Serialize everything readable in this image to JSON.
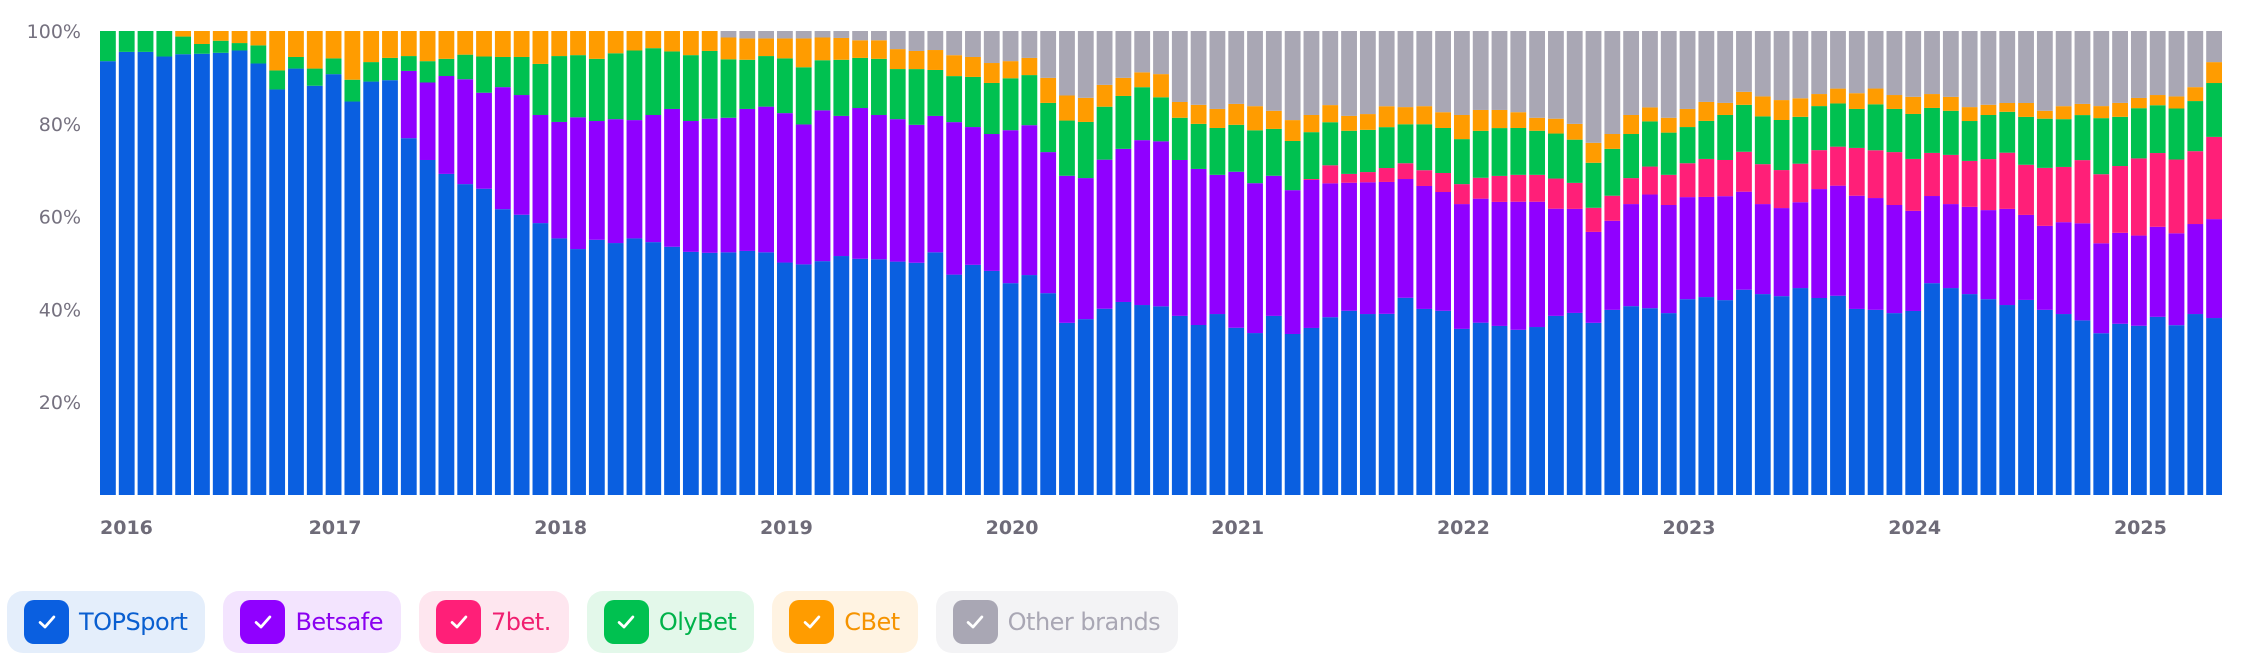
{
  "chart_data": {
    "type": "bar",
    "stacked": true,
    "normalized": true,
    "title": "",
    "xlabel": "",
    "ylabel": "",
    "ylim": [
      0,
      100
    ],
    "y_ticks": [
      "20%",
      "40%",
      "60%",
      "80%",
      "100%"
    ],
    "y_tick_values": [
      20,
      40,
      60,
      80,
      100
    ],
    "x_ticks": [
      "2016",
      "2017",
      "2018",
      "2019",
      "2020",
      "2021",
      "2022",
      "2023",
      "2024",
      "2025"
    ],
    "x_tick_bar_index": [
      0,
      12,
      24,
      36,
      48,
      60,
      72,
      84,
      96,
      108
    ],
    "bar_count": 113,
    "legend_position": "bottom-left",
    "series": [
      {
        "name": "TOPSport",
        "color": "#0a5fe0",
        "values": [
          93.5,
          95.5,
          95.5,
          94.5,
          95,
          95.1,
          95.3,
          95.8,
          93,
          87.4,
          91.9,
          88.2,
          90.7,
          84.8,
          89.1,
          89.4,
          76.9,
          72.2,
          69.2,
          67,
          66,
          61.6,
          60.4,
          58.6,
          55.3,
          53,
          55,
          54.3,
          55.3,
          54.5,
          53.5,
          52.4,
          52.2,
          52.3,
          52.6,
          52.3,
          50.1,
          49.6,
          50.4,
          51.5,
          50.9,
          50.8,
          50.3,
          50,
          52.3,
          47.4,
          49.6,
          48.3,
          45.7,
          47.4,
          43.5,
          37.1,
          37.9,
          40.1,
          41.6,
          40.9,
          40.7,
          38.6,
          36.6,
          39,
          36,
          34.9,
          38.6,
          34.7,
          36,
          38.4,
          39.7,
          39,
          39,
          42.5,
          40.1,
          39.7,
          35.8,
          37.1,
          36.4,
          35.6,
          36.2,
          38.6,
          39.2,
          37.1,
          39.9,
          40.7,
          40.1,
          39.2,
          42.2,
          42.7,
          42,
          44.2,
          43.3,
          42.9,
          44.6,
          42.5,
          42.9,
          40.1,
          39.9,
          39.2,
          39.7,
          45.7,
          44.6,
          43.3,
          42.2,
          40.9,
          42,
          39.9,
          39,
          37.6,
          34.9,
          36.9,
          36.4,
          38.4,
          36.6,
          39,
          38.1
        ]
      },
      {
        "name": "Betsafe",
        "color": "#9000ff",
        "values": [
          0,
          0,
          0,
          0,
          0,
          0,
          0,
          0,
          0,
          0,
          0,
          0,
          0,
          0,
          0,
          0,
          14.5,
          16.7,
          21.1,
          22.6,
          20.7,
          26.3,
          25.8,
          23.3,
          25.1,
          28.4,
          25.6,
          26.7,
          25.5,
          27.4,
          29.7,
          28.2,
          28.9,
          29,
          30.6,
          31.4,
          32.2,
          30.1,
          32.5,
          30.2,
          32.5,
          31.1,
          30.7,
          29.7,
          29.4,
          32.8,
          29.7,
          29.5,
          33,
          32.3,
          30.4,
          31.7,
          30.4,
          32.1,
          33,
          35.5,
          35.6,
          33.6,
          33.6,
          30,
          33.6,
          32.3,
          30.2,
          31,
          31.9,
          28.9,
          27.6,
          28.4,
          28.4,
          25.6,
          26.5,
          25.6,
          26.9,
          26.7,
          26.7,
          27.6,
          27,
          23.1,
          22.4,
          19.6,
          19.2,
          22,
          24.4,
          23.3,
          22,
          21.6,
          22.4,
          21.1,
          19.4,
          19,
          18.5,
          23.5,
          23.7,
          24.4,
          24.1,
          23.3,
          21.6,
          18.8,
          18.1,
          18.8,
          19.2,
          20.7,
          18.3,
          18.1,
          19.8,
          20.9,
          19.4,
          19.6,
          19.4,
          19.4,
          19.8,
          19.4,
          21.3
        ]
      },
      {
        "name": "7bet.",
        "color": "#ff1f78",
        "values": [
          0,
          0,
          0,
          0,
          0,
          0,
          0,
          0,
          0,
          0,
          0,
          0,
          0,
          0,
          0,
          0,
          0,
          0,
          0,
          0,
          0,
          0,
          0,
          0,
          0,
          0,
          0,
          0,
          0,
          0,
          0,
          0,
          0,
          0,
          0,
          0,
          0,
          0,
          0,
          0,
          0,
          0,
          0,
          0,
          0,
          0,
          0,
          0,
          0,
          0,
          0,
          0,
          0,
          0,
          0,
          0,
          0,
          0,
          0,
          0,
          0,
          0,
          0,
          0,
          0.2,
          3.9,
          1.9,
          2.2,
          3,
          3.4,
          3.4,
          4.1,
          4.3,
          4.5,
          5.6,
          5.8,
          5.8,
          6.5,
          5.6,
          5.2,
          5.4,
          5.6,
          6,
          6.5,
          7.3,
          8.2,
          7.8,
          8.6,
          8.6,
          8.2,
          8.3,
          8.4,
          8.4,
          10.3,
          10.3,
          11.4,
          11.2,
          9.3,
          10.6,
          9.9,
          11,
          12.1,
          10.8,
          12.5,
          11.9,
          13.6,
          14.9,
          14.4,
          16.6,
          15.9,
          15.9,
          15.7,
          17.7
        ]
      },
      {
        "name": "OlyBet",
        "color": "#00c150",
        "values": [
          6.5,
          4.5,
          4.5,
          5.5,
          3.8,
          2.1,
          2.6,
          1.6,
          3.9,
          4.1,
          2.5,
          3.7,
          3.4,
          4.7,
          4.2,
          4.8,
          3.2,
          4.6,
          3.7,
          5.3,
          7.8,
          6.5,
          8.2,
          11,
          14.2,
          13.4,
          13.4,
          14.2,
          15,
          14.4,
          12.4,
          14.2,
          14.6,
          12.6,
          10.6,
          10.9,
          11.8,
          12.3,
          10.8,
          12.1,
          10.8,
          12.1,
          10.8,
          12,
          9.9,
          9.9,
          10.8,
          11,
          11.2,
          10.8,
          10.6,
          11.9,
          12.1,
          11.4,
          11.4,
          11.4,
          9.5,
          9.1,
          9.7,
          10.1,
          10.1,
          11.4,
          10.1,
          10.6,
          10.1,
          9.3,
          9.3,
          9.1,
          8.8,
          8.4,
          9.9,
          9.7,
          9.7,
          10.1,
          10.3,
          10.1,
          9.5,
          9.7,
          9.3,
          9.7,
          10.1,
          9.5,
          9.7,
          9.1,
          7.8,
          8.2,
          9.7,
          10.1,
          10.3,
          10.8,
          10.1,
          9.5,
          9.3,
          8.4,
          9.9,
          9.3,
          9.7,
          9.7,
          9.5,
          8.6,
          9.5,
          8.8,
          10.3,
          10.6,
          10.3,
          9.7,
          12.1,
          10.6,
          10.8,
          10.3,
          11,
          10.8,
          11.6
        ]
      },
      {
        "name": "CBet",
        "color": "#ff9c00",
        "values": [
          0,
          0,
          0,
          0,
          1.2,
          2.8,
          2.1,
          2.6,
          3.1,
          8.5,
          5.6,
          8.1,
          5.9,
          10.5,
          6.7,
          5.8,
          5.4,
          6.5,
          6,
          5.1,
          5.5,
          5.6,
          5.6,
          7.1,
          5.4,
          5.2,
          6,
          4.8,
          4.2,
          3.7,
          4.4,
          5.2,
          4.3,
          4.7,
          4.6,
          3.8,
          4.3,
          6.2,
          4.9,
          4.7,
          3.8,
          4,
          4.3,
          3.9,
          4.3,
          4.5,
          4.3,
          4.3,
          3.7,
          3.7,
          5.4,
          5.4,
          5.2,
          4.7,
          3.9,
          3.2,
          5,
          3.4,
          4.1,
          4.1,
          4.5,
          5.2,
          3.9,
          4.5,
          3.7,
          3.7,
          3.2,
          3.4,
          4.5,
          3.7,
          3.9,
          3.4,
          5.2,
          4.5,
          3.9,
          3.4,
          2.8,
          3.2,
          3.4,
          4.3,
          3.2,
          4.1,
          3,
          3.2,
          3.9,
          4.1,
          2.6,
          2.8,
          4.3,
          4.3,
          4,
          2.6,
          3.2,
          3.4,
          3.4,
          3,
          3.7,
          3,
          3,
          3,
          2.2,
          1.9,
          3,
          1.7,
          2.8,
          2.4,
          2.6,
          3,
          2.2,
          2.2,
          2.6,
          3,
          4.5
        ]
      },
      {
        "name": "Other brands",
        "color": "#a9a7b4",
        "values": [
          0,
          0,
          0,
          0,
          0,
          0,
          0,
          0,
          0,
          0,
          0,
          0,
          0,
          0,
          0,
          0,
          0,
          0,
          0,
          0,
          0,
          0,
          0,
          0,
          0,
          0,
          0,
          0,
          0,
          0,
          0,
          0,
          0,
          1.4,
          1.6,
          1.6,
          1.6,
          1.6,
          1.4,
          1.5,
          2,
          2,
          3.9,
          4.3,
          4.1,
          5.2,
          5.6,
          6.9,
          6.5,
          5.8,
          10.1,
          13.9,
          14.4,
          11.6,
          10.1,
          8.9,
          9.3,
          15.3,
          15.9,
          16.8,
          15.7,
          16.2,
          17.2,
          19.2,
          18.1,
          16,
          18.3,
          17.9,
          16.2,
          16.4,
          16.2,
          17.5,
          18.1,
          17,
          17,
          17.5,
          18.7,
          18.9,
          20,
          24.1,
          22.2,
          18.1,
          16.4,
          18.7,
          16.8,
          15.3,
          15.5,
          13.1,
          14.1,
          14.9,
          14.5,
          13.6,
          12.4,
          13.4,
          12.4,
          13.8,
          14.2,
          13.6,
          14.2,
          16.4,
          15.9,
          15.5,
          15.5,
          17.2,
          16.2,
          15.7,
          16.2,
          15.5,
          14.4,
          13.8,
          14.1,
          12.1,
          6.7
        ]
      }
    ]
  },
  "legend": {
    "items": [
      {
        "label": "TOPSport",
        "checked": true,
        "icon": "check-icon",
        "color": "#0a5fe0",
        "bg": "#e4eefb",
        "text": "#0a5fd0"
      },
      {
        "label": "Betsafe",
        "checked": true,
        "icon": "check-icon",
        "color": "#9000ff",
        "bg": "#f3e4fe",
        "text": "#8a00f0"
      },
      {
        "label": "7bet.",
        "checked": true,
        "icon": "check-icon",
        "color": "#ff1f78",
        "bg": "#fee6ef",
        "text": "#f01f70"
      },
      {
        "label": "OlyBet",
        "checked": true,
        "icon": "check-icon",
        "color": "#00c150",
        "bg": "#e3f8ea",
        "text": "#00b24a"
      },
      {
        "label": "CBet",
        "checked": true,
        "icon": "check-icon",
        "color": "#ff9c00",
        "bg": "#fff3e2",
        "text": "#f59300"
      },
      {
        "label": "Other brands",
        "checked": true,
        "icon": "check-icon",
        "color": "#a9a7b4",
        "bg": "#f3f3f5",
        "text": "#a9a7b4"
      }
    ]
  }
}
